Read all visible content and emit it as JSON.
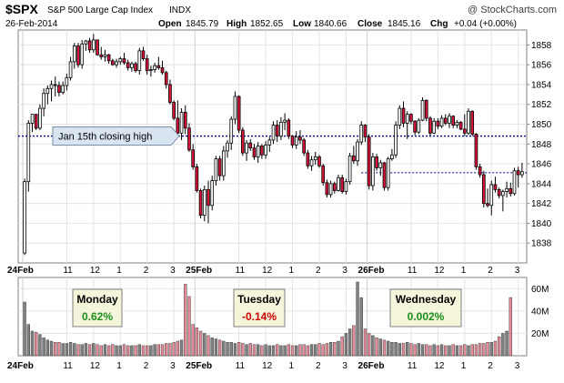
{
  "header": {
    "symbol": "$SPX",
    "name": "S&P 500 Large Cap Index",
    "exchange": "INDX",
    "date": "26-Feb-2014",
    "copyright": "@ StockCharts.com",
    "open_label": "Open",
    "open": "1845.79",
    "high_label": "High",
    "high": "1852.65",
    "low_label": "Low",
    "low": "1840.66",
    "close_label": "Close",
    "close": "1845.16",
    "chg_label": "Chg",
    "chg": "+0.04 (+0.00%)"
  },
  "annotations": {
    "jan15": {
      "label": "Jan 15th closing  high",
      "level": 1848.8
    },
    "prior_close_level": 1845.1,
    "days": [
      {
        "name": "Monday",
        "change": "0.62%",
        "color": "#1a8f1a"
      },
      {
        "name": "Tuesday",
        "change": "-0.14%",
        "color": "#cc0000"
      },
      {
        "name": "Wednesday",
        "change": "0.002%",
        "color": "#1a8f1a"
      }
    ]
  },
  "colors": {
    "up": "#ffffff",
    "down": "#dc143c",
    "dotted_line": "#00008b",
    "vol_up": "#808080",
    "vol_down": "#e58a96"
  },
  "chart_data": {
    "type": "candlestick",
    "ylim": [
      1836,
      1859.5
    ],
    "y_ticks": [
      1838,
      1840,
      1842,
      1844,
      1846,
      1848,
      1850,
      1852,
      1854,
      1856,
      1858
    ],
    "x_tick_labels": [
      {
        "i": 0,
        "label": "24Feb",
        "bold": true
      },
      {
        "i": 11,
        "label": "11"
      },
      {
        "i": 18,
        "label": "12"
      },
      {
        "i": 25,
        "label": "1"
      },
      {
        "i": 32,
        "label": "2"
      },
      {
        "i": 39,
        "label": "3"
      },
      {
        "i": 45,
        "label": "25Feb",
        "bold": true
      },
      {
        "i": 56,
        "label": "11"
      },
      {
        "i": 63,
        "label": "12"
      },
      {
        "i": 70,
        "label": "1"
      },
      {
        "i": 77,
        "label": "2"
      },
      {
        "i": 84,
        "label": "3"
      },
      {
        "i": 90,
        "label": "26Feb",
        "bold": true
      },
      {
        "i": 101,
        "label": "11"
      },
      {
        "i": 108,
        "label": "12"
      },
      {
        "i": 115,
        "label": "1"
      },
      {
        "i": 122,
        "label": "2"
      },
      {
        "i": 129,
        "label": "3"
      }
    ],
    "volume_ylim": [
      0,
      70
    ],
    "volume_ticks": [
      {
        "v": 20,
        "label": "20M"
      },
      {
        "v": 40,
        "label": "40M"
      },
      {
        "v": 60,
        "label": "60M"
      }
    ],
    "candles": [
      [
        1837,
        1844.5,
        1836.8,
        1844.2
      ],
      [
        1844.2,
        1850.4,
        1843.2,
        1850.1
      ],
      [
        1850.1,
        1851,
        1849.2,
        1851
      ],
      [
        1851,
        1851,
        1849.4,
        1849.6
      ],
      [
        1849.6,
        1852,
        1849.4,
        1851.6
      ],
      [
        1851.6,
        1853.6,
        1850.8,
        1853.1
      ],
      [
        1853.1,
        1853.9,
        1852,
        1853.6
      ],
      [
        1853.6,
        1854.4,
        1852.3,
        1854
      ],
      [
        1854,
        1854.8,
        1852.8,
        1853.9
      ],
      [
        1853.9,
        1854.3,
        1852.8,
        1853.2
      ],
      [
        1853.2,
        1854.3,
        1853,
        1853.9
      ],
      [
        1853.9,
        1855.1,
        1853.4,
        1854.7
      ],
      [
        1854.7,
        1856.8,
        1854.4,
        1856.3
      ],
      [
        1856.3,
        1858.2,
        1855.6,
        1857.9
      ],
      [
        1857.9,
        1858.2,
        1855.7,
        1856
      ],
      [
        1856,
        1858.5,
        1855.6,
        1858.1
      ],
      [
        1858.1,
        1858.5,
        1857.4,
        1858.4
      ],
      [
        1858.4,
        1858.7,
        1857.2,
        1857.5
      ],
      [
        1857.5,
        1859.1,
        1857.2,
        1858.5
      ],
      [
        1858.5,
        1858.5,
        1856.9,
        1857
      ],
      [
        1857,
        1857.8,
        1856.5,
        1856.8
      ],
      [
        1856.8,
        1857.5,
        1856.3,
        1857
      ],
      [
        1857,
        1857.1,
        1856.1,
        1856.4
      ],
      [
        1856.4,
        1856.6,
        1855.9,
        1856
      ],
      [
        1856,
        1856.6,
        1855.7,
        1856.3
      ],
      [
        1856.3,
        1856.8,
        1856,
        1856.6
      ],
      [
        1856.6,
        1857.2,
        1856,
        1856.2
      ],
      [
        1856.2,
        1856.5,
        1855.4,
        1855.7
      ],
      [
        1855.7,
        1856.3,
        1855.3,
        1856.1
      ],
      [
        1856.1,
        1856.3,
        1855.2,
        1855.4
      ],
      [
        1855.4,
        1857.7,
        1855,
        1857.4
      ],
      [
        1857.4,
        1857.8,
        1856.4,
        1856.6
      ],
      [
        1856.6,
        1857,
        1855,
        1855.4
      ],
      [
        1855.4,
        1855.9,
        1854.8,
        1855.5
      ],
      [
        1855.5,
        1856.2,
        1855.2,
        1855.9
      ],
      [
        1855.9,
        1856.8,
        1855.5,
        1855.7
      ],
      [
        1855.7,
        1856.4,
        1855,
        1855.2
      ],
      [
        1855.2,
        1855.4,
        1853.6,
        1854
      ],
      [
        1854,
        1854.5,
        1852,
        1852.2
      ],
      [
        1852.2,
        1852.4,
        1850.4,
        1850.6
      ],
      [
        1850.6,
        1852.4,
        1848.9,
        1849.1
      ],
      [
        1849.1,
        1851.6,
        1848.4,
        1851.2
      ],
      [
        1851.2,
        1851.9,
        1849,
        1849.6
      ],
      [
        1849.6,
        1850.1,
        1847.2,
        1847.4
      ],
      [
        1847.4,
        1848,
        1845.4,
        1845.7
      ],
      [
        1845.7,
        1846,
        1843.1,
        1843.3
      ],
      [
        1843.3,
        1843.5,
        1840.5,
        1840.8
      ],
      [
        1840.8,
        1843.8,
        1840.2,
        1843.4
      ],
      [
        1843.4,
        1844.3,
        1840,
        1841.8
      ],
      [
        1841.8,
        1844.8,
        1841.3,
        1844.3
      ],
      [
        1844.3,
        1846.8,
        1843.8,
        1846.5
      ],
      [
        1846.5,
        1846.8,
        1844.3,
        1844.8
      ],
      [
        1844.8,
        1847.8,
        1844.3,
        1847.3
      ],
      [
        1847.3,
        1848.4,
        1846.6,
        1848.1
      ],
      [
        1848.1,
        1850.8,
        1847.4,
        1850.5
      ],
      [
        1850.5,
        1853.3,
        1850,
        1852.8
      ],
      [
        1852.8,
        1852.9,
        1849.1,
        1849.4
      ],
      [
        1849.4,
        1849.7,
        1846.8,
        1847.1
      ],
      [
        1847.1,
        1848.4,
        1846.3,
        1848.1
      ],
      [
        1848.1,
        1848.5,
        1847.3,
        1847.6
      ],
      [
        1847.6,
        1848,
        1846.4,
        1846.7
      ],
      [
        1846.7,
        1848.2,
        1846.1,
        1847.8
      ],
      [
        1847.8,
        1848,
        1846.5,
        1846.9
      ],
      [
        1846.9,
        1848.3,
        1846.5,
        1847.9
      ],
      [
        1847.9,
        1848.7,
        1847.2,
        1848.4
      ],
      [
        1848.4,
        1850.3,
        1848,
        1849.9
      ],
      [
        1849.9,
        1850.4,
        1848.2,
        1848.8
      ],
      [
        1848.8,
        1850.7,
        1848.4,
        1850.2
      ],
      [
        1850.2,
        1851.1,
        1849.4,
        1850.4
      ],
      [
        1850.4,
        1850.6,
        1848.5,
        1848.8
      ],
      [
        1848.8,
        1848.9,
        1847.6,
        1847.9
      ],
      [
        1847.9,
        1849.3,
        1847.5,
        1848.7
      ],
      [
        1848.7,
        1849.4,
        1848,
        1848.4
      ],
      [
        1848.4,
        1848.6,
        1846.8,
        1847.1
      ],
      [
        1847.1,
        1847.4,
        1845.5,
        1845.8
      ],
      [
        1845.8,
        1846.8,
        1845.3,
        1846.4
      ],
      [
        1846.4,
        1847.2,
        1845.9,
        1846.7
      ],
      [
        1846.7,
        1846.9,
        1845.6,
        1845.8
      ],
      [
        1845.8,
        1846,
        1843.8,
        1844.1
      ],
      [
        1844.1,
        1844.4,
        1842.6,
        1842.9
      ],
      [
        1842.9,
        1844.3,
        1842.6,
        1844
      ],
      [
        1844,
        1844.2,
        1843,
        1843.3
      ],
      [
        1843.3,
        1844.9,
        1843.2,
        1844.6
      ],
      [
        1844.6,
        1844.9,
        1843,
        1843.2
      ],
      [
        1843.2,
        1844.5,
        1842.9,
        1844.2
      ],
      [
        1844.2,
        1847.1,
        1843.9,
        1846.8
      ],
      [
        1846.8,
        1847.8,
        1846,
        1846.3
      ],
      [
        1846.3,
        1848.5,
        1845.8,
        1848.2
      ],
      [
        1848.2,
        1850.3,
        1847.9,
        1849.9
      ],
      [
        1849.9,
        1850,
        1848.2,
        1848.7
      ],
      [
        1848.7,
        1849,
        1843.4,
        1843.8
      ],
      [
        1843.8,
        1847.1,
        1843.3,
        1846.7
      ],
      [
        1846.7,
        1847,
        1845.3,
        1845.6
      ],
      [
        1845.6,
        1846.4,
        1844.8,
        1846.1
      ],
      [
        1846.1,
        1846.2,
        1843.3,
        1843.6
      ],
      [
        1843.6,
        1846.7,
        1843.3,
        1846.5
      ],
      [
        1846.5,
        1847.5,
        1846.3,
        1846.9
      ],
      [
        1846.9,
        1850.3,
        1846.6,
        1849.9
      ],
      [
        1849.9,
        1851.9,
        1849.5,
        1851.6
      ],
      [
        1851.6,
        1852.3,
        1849.7,
        1850.1
      ],
      [
        1850.1,
        1851.3,
        1848.5,
        1851
      ],
      [
        1851,
        1851.1,
        1850,
        1850.3
      ],
      [
        1850.3,
        1850.4,
        1848.9,
        1849.2
      ],
      [
        1849.2,
        1850.6,
        1849,
        1850.4
      ],
      [
        1850.4,
        1852.7,
        1850.3,
        1852.4
      ],
      [
        1852.4,
        1852.5,
        1850.3,
        1850.6
      ],
      [
        1850.6,
        1850.8,
        1848.8,
        1849.1
      ],
      [
        1849.1,
        1850.6,
        1849,
        1850.3
      ],
      [
        1850.3,
        1850.6,
        1849.5,
        1849.8
      ],
      [
        1849.8,
        1850.9,
        1849.6,
        1850.6
      ],
      [
        1850.6,
        1851,
        1849.9,
        1850.1
      ],
      [
        1850.1,
        1851.1,
        1849.6,
        1850.8
      ],
      [
        1850.8,
        1850.9,
        1849.6,
        1849.9
      ],
      [
        1849.9,
        1850.4,
        1849.6,
        1850.2
      ],
      [
        1850.2,
        1850.3,
        1849.4,
        1849.5
      ],
      [
        1849.5,
        1851,
        1848.8,
        1849.1
      ],
      [
        1849.1,
        1851.6,
        1848.9,
        1851.3
      ],
      [
        1851.3,
        1851.4,
        1848.8,
        1849
      ],
      [
        1849,
        1849.1,
        1845.4,
        1845.7
      ],
      [
        1845.7,
        1846,
        1844.6,
        1844.9
      ],
      [
        1844.9,
        1845.3,
        1841.6,
        1842
      ],
      [
        1842,
        1843.5,
        1841.6,
        1841.8
      ],
      [
        1841.8,
        1844.3,
        1840.8,
        1843.9
      ],
      [
        1843.9,
        1844.7,
        1843.1,
        1843.4
      ],
      [
        1843.4,
        1843.6,
        1842.5,
        1842.8
      ],
      [
        1842.8,
        1843.4,
        1841.2,
        1843.2
      ],
      [
        1843.2,
        1844.2,
        1842.6,
        1843.5
      ],
      [
        1843.5,
        1844.1,
        1842.7,
        1843
      ],
      [
        1843,
        1845.6,
        1842.8,
        1845.3
      ],
      [
        1845.3,
        1845.7,
        1843.6,
        1844.9
      ],
      [
        1844.9,
        1846.1,
        1844.6,
        1845.2
      ]
    ],
    "volume": [
      48,
      28,
      22,
      21,
      19,
      16,
      14,
      13,
      12,
      12,
      11,
      11,
      12,
      11,
      10,
      10,
      11,
      10,
      11,
      10,
      9,
      10,
      9,
      10,
      9,
      9,
      10,
      9,
      9,
      9,
      10,
      9,
      9,
      9,
      10,
      10,
      10,
      11,
      11,
      12,
      13,
      14,
      64,
      53,
      28,
      25,
      22,
      20,
      18,
      16,
      15,
      14,
      13,
      12,
      12,
      11,
      12,
      11,
      10,
      11,
      10,
      10,
      9,
      10,
      9,
      9,
      10,
      9,
      9,
      10,
      9,
      9,
      10,
      10,
      9,
      10,
      10,
      11,
      10,
      11,
      12,
      12,
      13,
      17,
      20,
      24,
      27,
      66,
      52,
      24,
      20,
      18,
      16,
      15,
      14,
      13,
      12,
      12,
      11,
      11,
      12,
      11,
      10,
      11,
      10,
      10,
      9,
      10,
      9,
      10,
      9,
      9,
      10,
      9,
      9,
      10,
      9,
      10,
      10,
      11,
      11,
      12,
      12,
      13,
      17,
      20,
      22,
      52
    ]
  }
}
